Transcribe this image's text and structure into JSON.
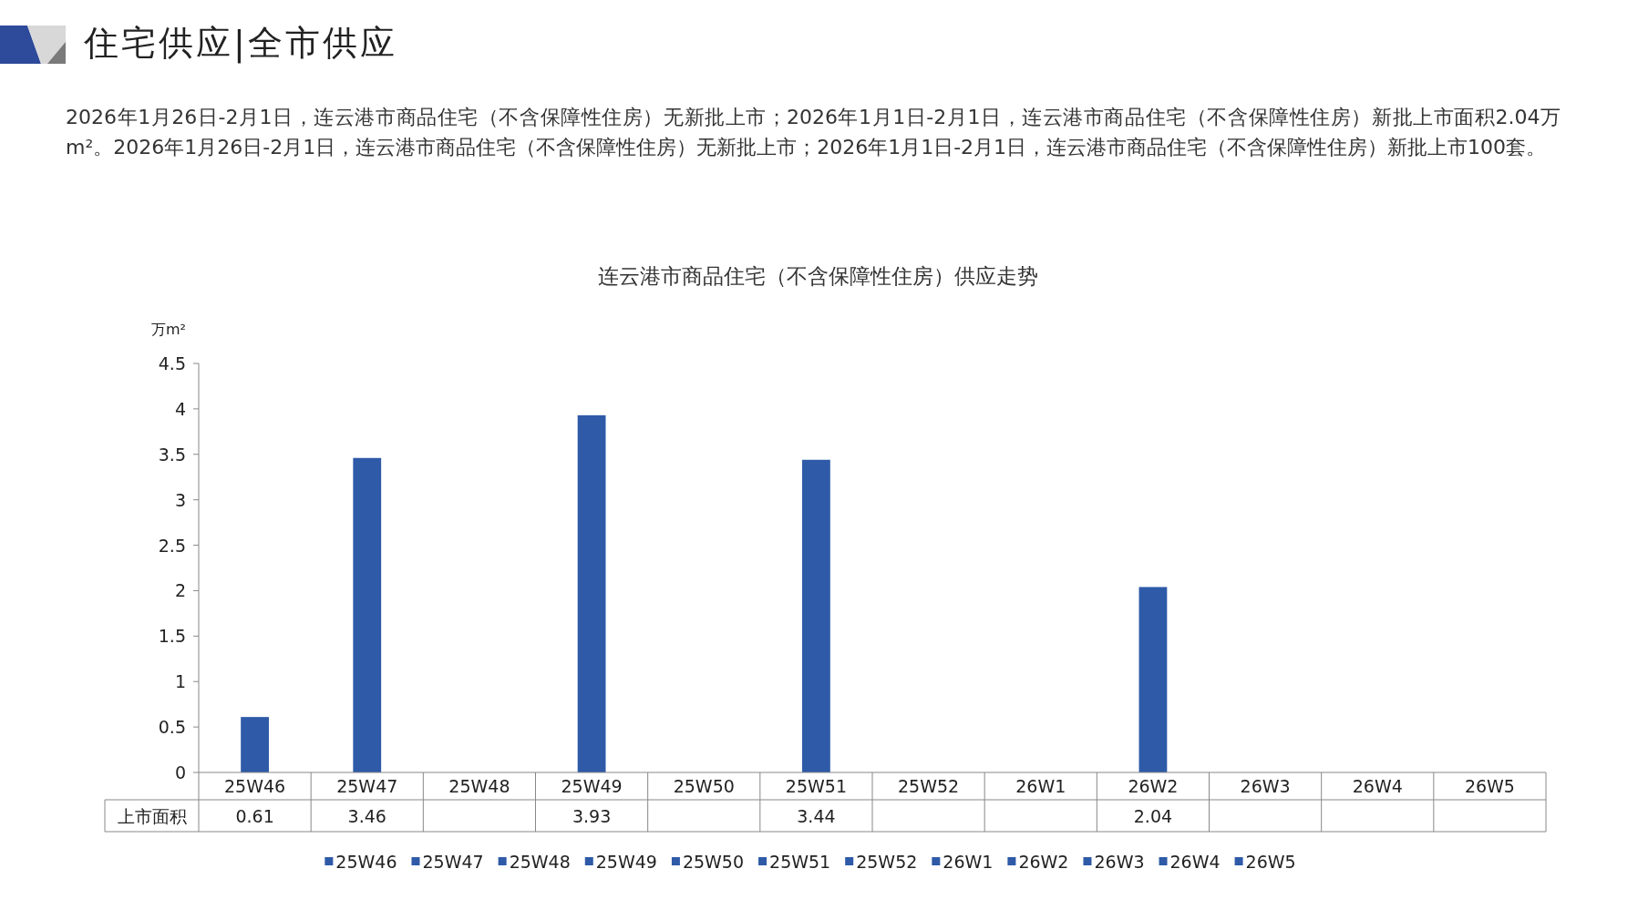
{
  "chart_data": {
    "type": "bar",
    "title": "连云港市商品住宅（不含保障性住房）供应走势",
    "annotations": [
      "住宅供应|全市供应",
      "2026年1月26日-2月1日，连云港市商品住宅（不含保障性住房）无新批上市；2026年1月1日-2月1日，连云港市商品住宅（不含保障性住房）新批上市面积2.04万m²。2026年1月26日-2月1日，连云港市商品住宅（不含保障性住房）无新批上市；2026年1月1日-2月1日，连云港市商品住宅（不含保障性住房）新批上市100套。"
    ],
    "categories": [
      "25W46",
      "25W47",
      "25W48",
      "25W49",
      "25W50",
      "25W51",
      "25W52",
      "26W1",
      "26W2",
      "26W3",
      "26W4",
      "26W5"
    ],
    "series": [
      {
        "name": "上市面积",
        "color": "#2e5aa8",
        "values": [
          0.61,
          3.46,
          null,
          3.93,
          null,
          3.44,
          null,
          null,
          2.04,
          null,
          null,
          null
        ]
      }
    ],
    "ylabel": "万m²",
    "ylim": [
      0,
      4.5
    ],
    "yticks": [
      0,
      0.5,
      1,
      1.5,
      2,
      2.5,
      3,
      3.5,
      4,
      4.5
    ],
    "data_labels": true,
    "legend": "bottom",
    "grid": false
  }
}
